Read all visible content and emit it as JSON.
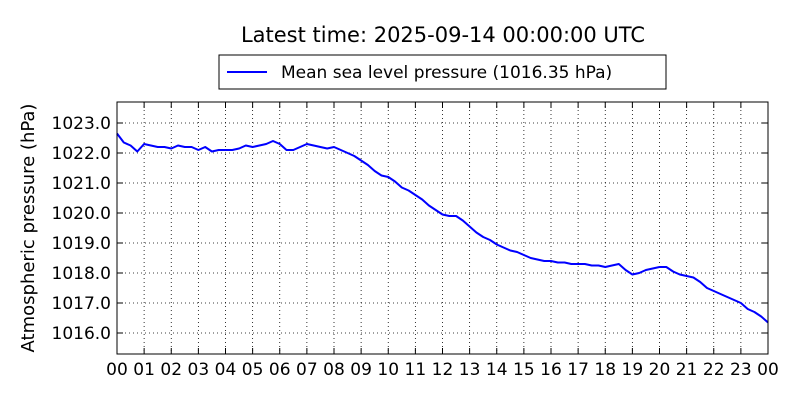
{
  "chart_data": {
    "type": "line",
    "title": "Latest time: 2025-09-14 00:00:00 UTC",
    "ylabel": "Atmospheric pressure (hPa)",
    "xlabel": "",
    "ylim": [
      1015.3,
      1023.7
    ],
    "xlim": [
      0,
      24
    ],
    "grid": true,
    "legend_position": "top-center",
    "x_tick_labels": [
      "00",
      "01",
      "02",
      "03",
      "04",
      "05",
      "06",
      "07",
      "08",
      "09",
      "10",
      "11",
      "12",
      "13",
      "14",
      "15",
      "16",
      "17",
      "18",
      "19",
      "20",
      "21",
      "22",
      "23",
      "00"
    ],
    "y_ticks": [
      1016.0,
      1017.0,
      1018.0,
      1019.0,
      1020.0,
      1021.0,
      1022.0,
      1023.0
    ],
    "y_tick_labels": [
      "1016.0",
      "1017.0",
      "1018.0",
      "1019.0",
      "1020.0",
      "1021.0",
      "1022.0",
      "1023.0"
    ],
    "series": [
      {
        "name": "Mean sea level pressure (1016.35 hPa)",
        "color": "#0000ff",
        "x": [
          0,
          0.25,
          0.5,
          0.75,
          1,
          1.25,
          1.5,
          1.75,
          2,
          2.25,
          2.5,
          2.75,
          3,
          3.25,
          3.5,
          3.75,
          4,
          4.25,
          4.5,
          4.75,
          5,
          5.25,
          5.5,
          5.75,
          6,
          6.25,
          6.5,
          6.75,
          7,
          7.25,
          7.5,
          7.75,
          8,
          8.25,
          8.5,
          8.75,
          9,
          9.25,
          9.5,
          9.75,
          10,
          10.25,
          10.5,
          10.75,
          11,
          11.25,
          11.5,
          11.75,
          12,
          12.25,
          12.5,
          12.75,
          13,
          13.25,
          13.5,
          13.75,
          14,
          14.25,
          14.5,
          14.75,
          15,
          15.25,
          15.5,
          15.75,
          16,
          16.25,
          16.5,
          16.75,
          17,
          17.25,
          17.5,
          17.75,
          18,
          18.25,
          18.5,
          18.75,
          19,
          19.25,
          19.5,
          19.75,
          20,
          20.25,
          20.5,
          20.75,
          21,
          21.25,
          21.5,
          21.75,
          22,
          22.25,
          22.5,
          22.75,
          23,
          23.25,
          23.5,
          23.75,
          24
        ],
        "values": [
          1022.65,
          1022.35,
          1022.25,
          1022.05,
          1022.3,
          1022.25,
          1022.2,
          1022.2,
          1022.15,
          1022.25,
          1022.2,
          1022.2,
          1022.1,
          1022.2,
          1022.05,
          1022.1,
          1022.1,
          1022.1,
          1022.15,
          1022.25,
          1022.2,
          1022.25,
          1022.3,
          1022.4,
          1022.3,
          1022.1,
          1022.1,
          1022.2,
          1022.3,
          1022.25,
          1022.2,
          1022.15,
          1022.2,
          1022.1,
          1022.0,
          1021.9,
          1021.75,
          1021.6,
          1021.4,
          1021.25,
          1021.2,
          1021.05,
          1020.85,
          1020.75,
          1020.6,
          1020.45,
          1020.25,
          1020.1,
          1019.95,
          1019.9,
          1019.9,
          1019.75,
          1019.55,
          1019.35,
          1019.2,
          1019.1,
          1018.95,
          1018.85,
          1018.75,
          1018.7,
          1018.6,
          1018.5,
          1018.45,
          1018.4,
          1018.4,
          1018.35,
          1018.35,
          1018.3,
          1018.3,
          1018.3,
          1018.25,
          1018.25,
          1018.2,
          1018.25,
          1018.3,
          1018.1,
          1017.95,
          1018.0,
          1018.1,
          1018.15,
          1018.2,
          1018.2,
          1018.05,
          1017.95,
          1017.9,
          1017.85,
          1017.7,
          1017.5,
          1017.4,
          1017.3,
          1017.2,
          1017.1,
          1017.0,
          1016.8,
          1016.7,
          1016.55,
          1016.35
        ]
      }
    ]
  }
}
